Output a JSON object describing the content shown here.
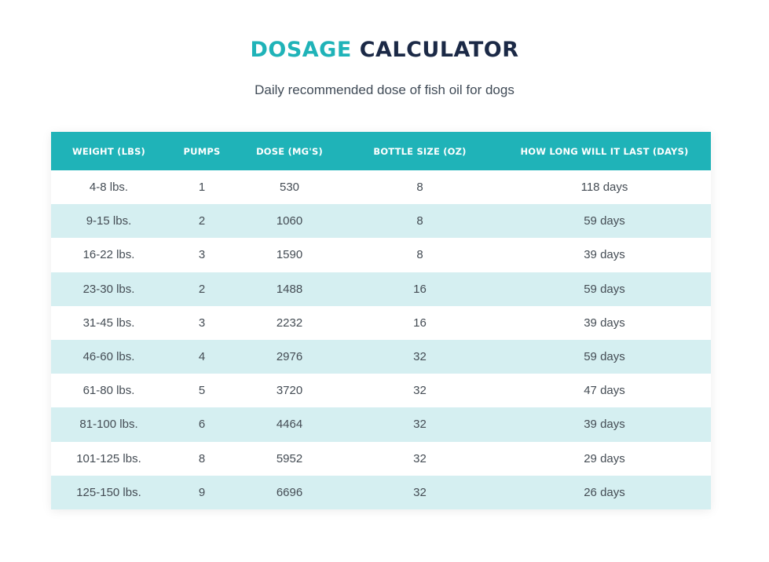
{
  "header": {
    "title_accent": "DOSAGE",
    "title_rest": "CALCULATOR",
    "subtitle": "Daily recommended dose of fish oil for dogs"
  },
  "table": {
    "columns": [
      "WEIGHT (LBS)",
      "PUMPS",
      "DOSE (MG'S)",
      "BOTTLE SIZE (OZ)",
      "HOW LONG WILL IT LAST (DAYS)"
    ],
    "rows": [
      [
        "4-8 lbs.",
        "1",
        "530",
        "8",
        "118 days"
      ],
      [
        "9-15 lbs.",
        "2",
        "1060",
        "8",
        "59 days"
      ],
      [
        "16-22 lbs.",
        "3",
        "1590",
        "8",
        "39 days"
      ],
      [
        "23-30 lbs.",
        "2",
        "1488",
        "16",
        "59 days"
      ],
      [
        "31-45 lbs.",
        "3",
        "2232",
        "16",
        "39 days"
      ],
      [
        "46-60 lbs.",
        "4",
        "2976",
        "32",
        "59 days"
      ],
      [
        "61-80 lbs.",
        "5",
        "3720",
        "32",
        "47 days"
      ],
      [
        "81-100 lbs.",
        "6",
        "4464",
        "32",
        "39 days"
      ],
      [
        "101-125 lbs.",
        "8",
        "5952",
        "32",
        "29 days"
      ],
      [
        "125-150 lbs.",
        "9",
        "6696",
        "32",
        "26 days"
      ]
    ]
  },
  "colors": {
    "accent": "#1fb3b8",
    "title_dark": "#1b2946",
    "row_alt": "#d5eff1"
  }
}
